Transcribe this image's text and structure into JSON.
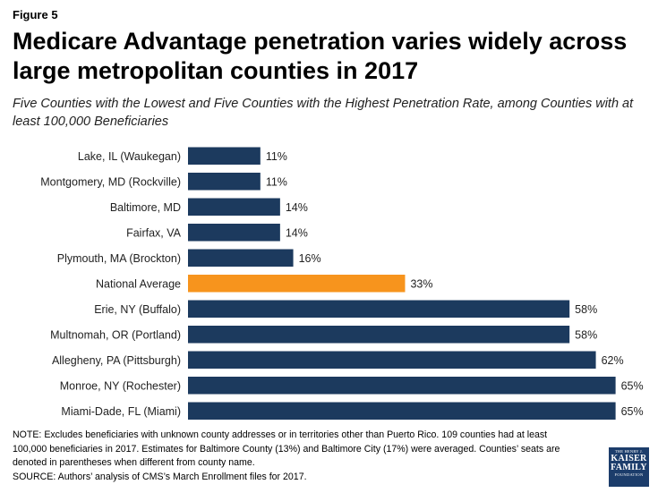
{
  "figure_label": "Figure 5",
  "title": "Medicare Advantage penetration varies widely across large metropolitan counties in 2017",
  "subtitle": "Five Counties with the Lowest and Five Counties with the Highest Penetration Rate, among Counties with at least 100,000 Beneficiaries",
  "chart_data": {
    "type": "bar",
    "orientation": "horizontal",
    "categories": [
      "Lake, IL (Waukegan)",
      "Montgomery, MD (Rockville)",
      "Baltimore, MD",
      "Fairfax, VA",
      "Plymouth, MA (Brockton)",
      "National Average",
      "Erie, NY (Buffalo)",
      "Multnomah, OR (Portland)",
      "Allegheny, PA (Pittsburgh)",
      "Monroe, NY (Rochester)",
      "Miami-Dade, FL (Miami)"
    ],
    "values": [
      11,
      11,
      14,
      14,
      16,
      33,
      58,
      58,
      62,
      65,
      65
    ],
    "data_labels": [
      "11%",
      "11%",
      "14%",
      "14%",
      "16%",
      "33%",
      "58%",
      "58%",
      "62%",
      "65%",
      "65%"
    ],
    "xlim": [
      0,
      69
    ],
    "colors": {
      "default": "#1c3a5e",
      "highlight": "#f7941d"
    },
    "highlight_category": "National Average",
    "grid": false
  },
  "notes": [
    "NOTE:  Excludes beneficiaries with unknown  county addresses or in territories other than Puerto Rico.  109 counties had at least",
    "100,000 beneficiaries in 2017. Estimates for Baltimore County (13%) and Baltimore City (17%) were averaged.  Counties’ seats are",
    "denoted in parentheses when different from county name.",
    "SOURCE:  Authors’ analysis of CMS’s March Enrollment files for 2017."
  ],
  "logo": {
    "line1": "THE HENRY J.",
    "line2": "KAISER",
    "line3": "FAMILY",
    "line4": "FOUNDATION"
  }
}
